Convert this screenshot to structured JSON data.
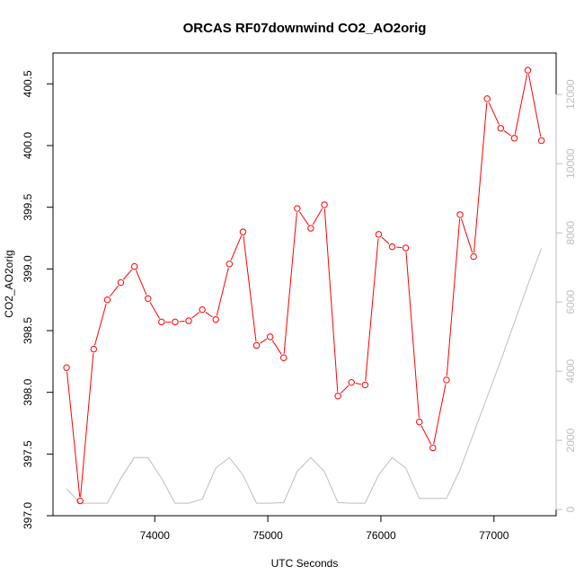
{
  "chart_data": {
    "type": "line",
    "title": "ORCAS RF07downwind CO2_AO2orig",
    "xlabel": "UTC Seconds",
    "ylabel": "CO2_AO2orig",
    "xlim": [
      73100,
      77550
    ],
    "ylim": [
      397.0,
      400.75
    ],
    "y2lim": [
      -180,
      13200
    ],
    "x_ticks": [
      74000,
      75000,
      76000,
      77000
    ],
    "y_ticks": [
      397.0,
      397.5,
      398.0,
      398.5,
      399.0,
      399.5,
      400.0,
      400.5
    ],
    "y_tick_labels": [
      "397.0",
      "397.5",
      "398.0",
      "398.5",
      "399.0",
      "399.5",
      "400.0",
      "400.5"
    ],
    "y2_ticks": [
      0,
      2000,
      4000,
      6000,
      8000,
      10000,
      12000
    ],
    "grid": false,
    "colors": {
      "co2": "#ff0000",
      "altitude": "#bebebe"
    },
    "series": [
      {
        "axis": "left",
        "marker": "open-circle",
        "x": [
          73220,
          73340,
          73460,
          73580,
          73700,
          73820,
          73940,
          74060,
          74180,
          74300,
          74420,
          74540,
          74660,
          74780,
          74900,
          75020,
          75140,
          75260,
          75380,
          75500,
          75620,
          75740,
          75860,
          75980,
          76100,
          76220,
          76340,
          76460,
          76580,
          76700,
          76820,
          76940,
          77060,
          77180,
          77300,
          77420
        ],
        "values": [
          398.2,
          397.12,
          398.35,
          398.75,
          398.89,
          399.02,
          398.76,
          398.57,
          398.57,
          398.58,
          398.67,
          398.59,
          399.04,
          399.3,
          398.38,
          398.45,
          398.28,
          399.49,
          399.33,
          399.52,
          397.97,
          398.08,
          398.06,
          399.28,
          399.18,
          399.17,
          397.76,
          397.55,
          398.1,
          399.44,
          399.1,
          400.38,
          400.14,
          400.06,
          400.61,
          400.04
        ]
      },
      {
        "axis": "right",
        "x": [
          73220,
          73340,
          73460,
          73580,
          73700,
          73820,
          73940,
          74060,
          74180,
          74300,
          74420,
          74540,
          74660,
          74780,
          74900,
          75020,
          75140,
          75260,
          75380,
          75500,
          75620,
          75740,
          75860,
          75980,
          76100,
          76220,
          76340,
          76460,
          76580,
          76700,
          76820,
          76940,
          77060,
          77180,
          77300,
          77420
        ],
        "values": [
          600,
          180,
          180,
          180,
          900,
          1500,
          1500,
          900,
          180,
          180,
          300,
          1200,
          1500,
          1000,
          180,
          180,
          200,
          1100,
          1500,
          1100,
          200,
          180,
          180,
          1000,
          1500,
          1200,
          320,
          320,
          320,
          1150,
          2200,
          3250,
          4300,
          5400,
          6500,
          7550
        ]
      }
    ]
  }
}
